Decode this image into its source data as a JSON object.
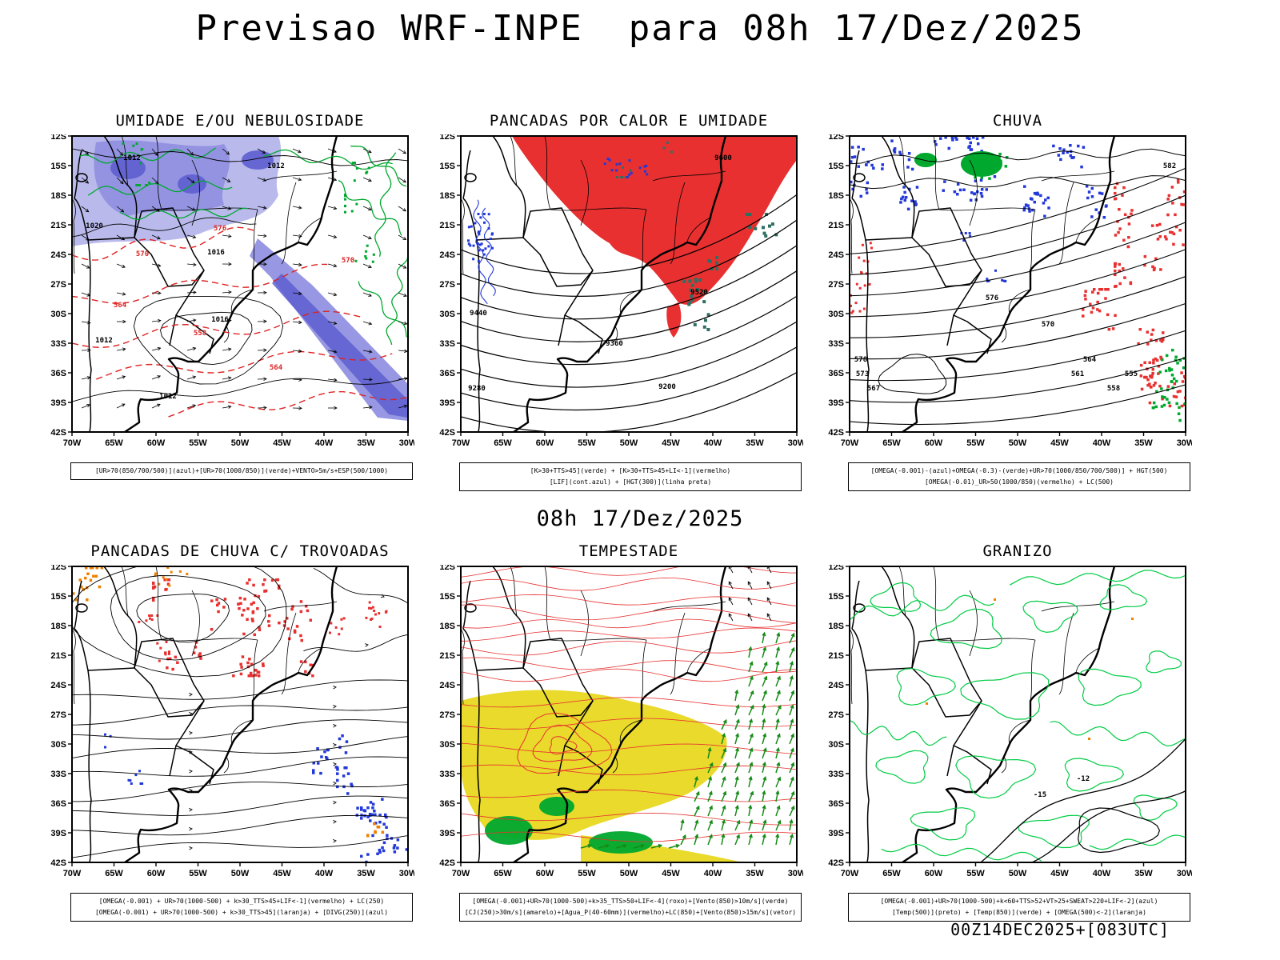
{
  "page": {
    "title": "Previsao WRF-INPE  para 08h 17/Dez/2025",
    "valid_time_heading": "08h 17/Dez/2025",
    "run_stamp": "00Z14DEC2025+[083UTC]"
  },
  "axes": {
    "lat_labels": [
      "12S",
      "15S",
      "18S",
      "21S",
      "24S",
      "27S",
      "30S",
      "33S",
      "36S",
      "39S",
      "42S"
    ],
    "lon_labels": [
      "70W",
      "65W",
      "60W",
      "55W",
      "50W",
      "45W",
      "40W",
      "35W",
      "30W"
    ]
  },
  "colors": {
    "vermelho": "#e83030",
    "vermelho_contorno": "#dd2222",
    "azul": "#2238d8",
    "verde": "#00a82e",
    "verde_claro": "#00cc44",
    "laranja": "#f08000",
    "amarelo": "#e8d820",
    "roxo_claro": "#b3b3ea",
    "roxo": "#8c8ce0",
    "roxo_escuro": "#5e5ed0",
    "teal": "#2f6f62",
    "preto": "#000000"
  },
  "panels": [
    {
      "title": "UMIDADE E/OU NEBULOSIDADE",
      "caption_lines": [
        "[UR>70(850/700/500)](azul)+[UR>70(1000/850)](verde)+VENTO>5m/s+ESP(500/1000)"
      ],
      "map_labels": [
        "1012",
        "1020",
        "1012",
        "1016",
        "1016",
        "1012",
        "1012",
        "570",
        "576",
        "564",
        "558",
        "564",
        "570"
      ]
    },
    {
      "title": "PANCADAS POR CALOR E UMIDADE",
      "caption_lines": [
        "[K>30+TTS>45](verde) + [K>30+TTS>45+LI<-1](vermelho)",
        "[LIF](cont.azul) + [HGT(300)](linha preta)"
      ],
      "map_labels": [
        "9600",
        "9520",
        "9440",
        "9360",
        "9280",
        "9200"
      ]
    },
    {
      "title": "CHUVA",
      "caption_lines": [
        "[OMEGA(-0.001)-(azul)+OMEGA(-0.3)-(verde)+UR>70(1000/850/700/500)] + HGT(500)",
        "[OMEGA(-0.01)_UR>50(1000/850)(vermelho) + LC(500)"
      ],
      "map_labels": [
        "582",
        "578",
        "576",
        "573",
        "570",
        "567",
        "564",
        "561",
        "558",
        "555"
      ]
    },
    {
      "title": "PANCADAS DE CHUVA C/ TROVOADAS",
      "caption_lines": [
        "[OMEGA(-0.001) + UR>70(1000-500) + k>30_TTS>45+LIF<-1](vermelho) + LC(250)",
        "[OMEGA(-0.001) + UR>70(1000-500) + k>30_TTS>45](laranja) + [DIVG(250)](azul)"
      ],
      "map_labels": []
    },
    {
      "title": "TEMPESTADE",
      "caption_lines": [
        "[OMEGA(-0.001)+UR>70(1000-500)+k>35_TTS>50+LIF<-4](roxo)+[Vento(850)>10m/s](verde)",
        "[CJ(250)>30m/s](amarelo)+[Agua_P(40-60mm)](vermelho)+LC(850)+[Vento(850)>15m/s](vetor)"
      ],
      "map_labels": []
    },
    {
      "title": "GRANIZO",
      "caption_lines": [
        "[OMEGA(-0.001)+UR>70(1000-500)+k<60+TTS>52+VT>25+SWEAT>220+LIF<-2](azul)",
        "[Temp(500)](preto) + [Temp(850)](verde) + [OMEGA(500)<-2](laranja)"
      ],
      "map_labels": [
        "-12",
        "-15"
      ]
    }
  ]
}
